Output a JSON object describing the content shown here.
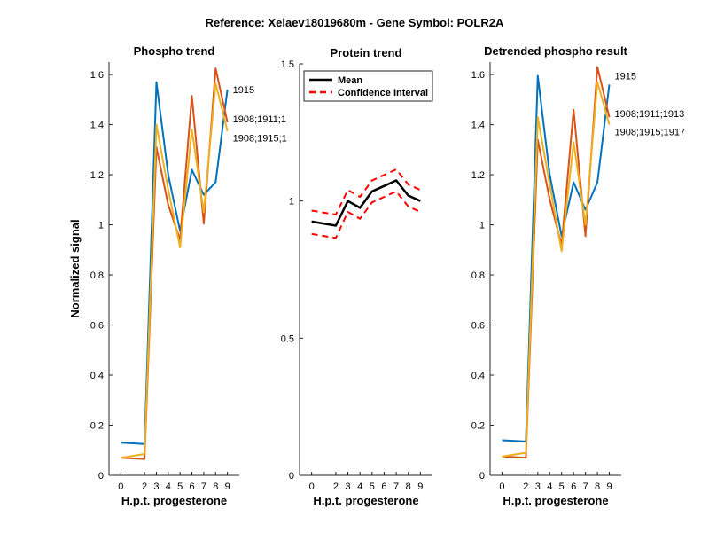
{
  "figure": {
    "title": "Reference:  Xelaev18019680m - Gene Symbol:  POLR2A"
  },
  "chart_data": [
    {
      "type": "line",
      "title": "Phospho trend",
      "xlabel": "H.p.t. progesterone",
      "ylabel": "Normalized signal",
      "x": [
        0,
        2,
        3,
        4,
        5,
        6,
        7,
        8,
        9
      ],
      "xticks": [
        "0",
        "2",
        "3",
        "4",
        "5",
        "6",
        "7",
        "8",
        "9"
      ],
      "ylim": [
        0,
        1.65
      ],
      "yticks": [
        "0",
        "0.2",
        "0.4",
        "0.6",
        "0.8",
        "1",
        "1.2",
        "1.4",
        "1.6"
      ],
      "series": [
        {
          "name": "1915",
          "color": "#0072BD",
          "values": [
            0.13,
            0.125,
            1.57,
            1.2,
            0.975,
            1.22,
            1.12,
            1.17,
            1.54
          ]
        },
        {
          "name": "1908;1911;1",
          "color": "#D95319",
          "values": [
            0.07,
            0.065,
            1.31,
            1.08,
            0.94,
            1.515,
            1.005,
            1.625,
            1.41
          ]
        },
        {
          "name": "1908;1915;1",
          "color": "#EDB120",
          "values": [
            0.07,
            0.085,
            1.4,
            1.14,
            0.91,
            1.38,
            1.05,
            1.565,
            1.375
          ]
        }
      ],
      "annotations": [
        "1915",
        "1908;1911;1",
        "1908;1915;1"
      ]
    },
    {
      "type": "line",
      "title": "Protein trend",
      "xlabel": "H.p.t. progesterone",
      "ylabel": "",
      "x": [
        0,
        2,
        3,
        4,
        5,
        6,
        7,
        8,
        9
      ],
      "xticks": [
        "0",
        "2",
        "3",
        "4",
        "5",
        "6",
        "7",
        "8",
        "9"
      ],
      "ylim": [
        0,
        1.5
      ],
      "yticks": [
        "0",
        "0.5",
        "1",
        "1.5"
      ],
      "series": [
        {
          "name": "Mean",
          "color": "#000000",
          "values": [
            0.925,
            0.91,
            1.0,
            0.975,
            1.035,
            1.055,
            1.075,
            1.02,
            1.0
          ]
        },
        {
          "name": "Confidence Interval",
          "color": "#FF0000",
          "values": [
            0.965,
            0.95,
            1.04,
            1.015,
            1.075,
            1.095,
            1.115,
            1.06,
            1.04
          ]
        },
        {
          "name": "Confidence Interval lower",
          "color": "#FF0000",
          "values": [
            0.88,
            0.865,
            0.96,
            0.935,
            0.995,
            1.015,
            1.035,
            0.98,
            0.96
          ]
        }
      ],
      "legend": {
        "placement": "top",
        "entries": [
          "Mean",
          "Confidence Interval"
        ]
      }
    },
    {
      "type": "line",
      "title": "Detrended phospho result",
      "xlabel": "H.p.t. progesterone",
      "ylabel": "",
      "x": [
        0,
        2,
        3,
        4,
        5,
        6,
        7,
        8,
        9
      ],
      "xticks": [
        "0",
        "2",
        "3",
        "4",
        "5",
        "6",
        "7",
        "8",
        "9"
      ],
      "ylim": [
        0,
        1.65
      ],
      "yticks": [
        "0",
        "0.2",
        "0.4",
        "0.6",
        "0.8",
        "1",
        "1.2",
        "1.4",
        "1.6"
      ],
      "series": [
        {
          "name": "1915",
          "color": "#0072BD",
          "values": [
            0.14,
            0.135,
            1.595,
            1.2,
            0.955,
            1.17,
            1.06,
            1.17,
            1.56
          ]
        },
        {
          "name": "1908;1911;1913",
          "color": "#D95319",
          "values": [
            0.075,
            0.07,
            1.34,
            1.1,
            0.92,
            1.46,
            0.955,
            1.63,
            1.43
          ]
        },
        {
          "name": "1908;1915;1917",
          "color": "#EDB120",
          "values": [
            0.075,
            0.09,
            1.43,
            1.16,
            0.895,
            1.33,
            1.0,
            1.57,
            1.4
          ]
        }
      ],
      "annotations": [
        "1915",
        "1908;1911;1913",
        "1908;1915;1917"
      ]
    }
  ]
}
